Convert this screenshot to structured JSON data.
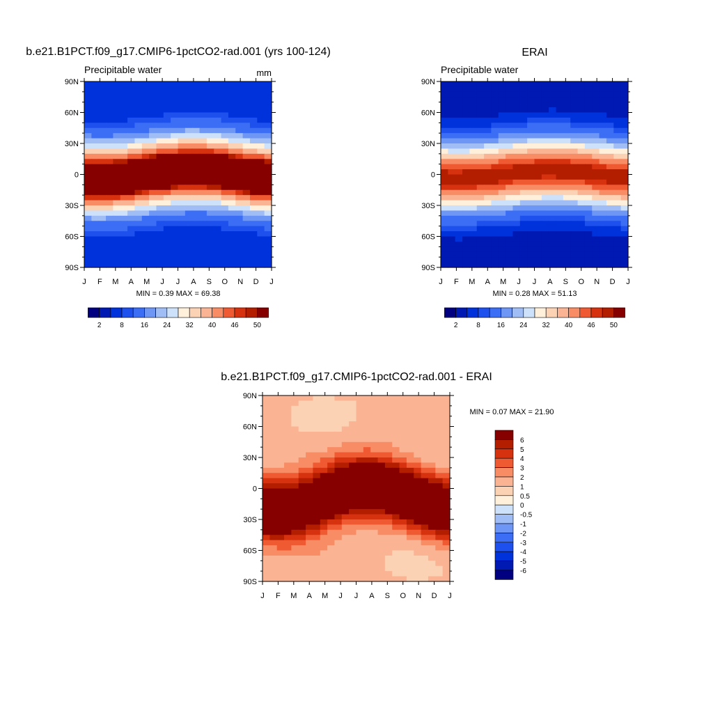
{
  "chart_data": [
    {
      "type": "heatmap",
      "title": "b.e21.B1PCT.f09_g17.CMIP6-1pctCO2-rad.001 (yrs 100-124)",
      "left_string": "Precipitable water",
      "right_string": "mm",
      "x_tick_labels": [
        "J",
        "F",
        "M",
        "A",
        "M",
        "J",
        "J",
        "A",
        "S",
        "O",
        "N",
        "D",
        "J"
      ],
      "y_tick_labels": [
        "90N",
        "60N",
        "30N",
        "0",
        "30S",
        "60S",
        "90S"
      ],
      "ylim": [
        -90,
        90
      ],
      "stats_text": "MIN =   0.39 MAX =  69.38",
      "colorbar": {
        "labels": [
          "2",
          "8",
          "16",
          "24",
          "32",
          "40",
          "46",
          "50"
        ],
        "colors": [
          "#000080",
          "#0019b3",
          "#0032dc",
          "#1e50ee",
          "#3c6ef5",
          "#6e96f5",
          "#a0bef5",
          "#cde1fa",
          "#fff0dc",
          "#fcd2b4",
          "#fab494",
          "#f88c64",
          "#f05a32",
          "#d7320f",
          "#b41e00",
          "#870000"
        ],
        "levels": [
          2,
          4,
          6,
          8,
          12,
          16,
          20,
          24,
          28,
          32,
          36,
          40,
          44,
          46,
          48,
          50
        ]
      }
    },
    {
      "type": "heatmap",
      "title": "ERAI",
      "left_string": "Precipitable water",
      "x_tick_labels": [
        "J",
        "F",
        "M",
        "A",
        "M",
        "J",
        "J",
        "A",
        "S",
        "O",
        "N",
        "D",
        "J"
      ],
      "y_tick_labels": [
        "90N",
        "60N",
        "30N",
        "0",
        "30S",
        "60S",
        "90S"
      ],
      "ylim": [
        -90,
        90
      ],
      "stats_text": "MIN =   0.28 MAX =  51.13",
      "colorbar": {
        "labels": [
          "2",
          "8",
          "16",
          "24",
          "32",
          "40",
          "46",
          "50"
        ],
        "colors": [
          "#000080",
          "#0019b3",
          "#0032dc",
          "#1e50ee",
          "#3c6ef5",
          "#6e96f5",
          "#a0bef5",
          "#cde1fa",
          "#fff0dc",
          "#fcd2b4",
          "#fab494",
          "#f88c64",
          "#f05a32",
          "#d7320f",
          "#b41e00",
          "#870000"
        ],
        "levels": [
          2,
          4,
          6,
          8,
          12,
          16,
          20,
          24,
          28,
          32,
          36,
          40,
          44,
          46,
          48,
          50
        ]
      }
    },
    {
      "type": "heatmap",
      "title": "b.e21.B1PCT.f09_g17.CMIP6-1pctCO2-rad.001 - ERAI",
      "x_tick_labels": [
        "J",
        "F",
        "M",
        "A",
        "M",
        "J",
        "J",
        "A",
        "S",
        "O",
        "N",
        "D",
        "J"
      ],
      "y_tick_labels": [
        "90N",
        "60N",
        "30N",
        "0",
        "30S",
        "60S",
        "90S"
      ],
      "ylim": [
        -90,
        90
      ],
      "stats_text": "MIN =   0.07 MAX =  21.90",
      "colorbar": {
        "labels": [
          "6",
          "5",
          "4",
          "3",
          "2",
          "1",
          "0.5",
          "0",
          "-0.5",
          "-1",
          "-2",
          "-3",
          "-4",
          "-5",
          "-6"
        ],
        "colors": [
          "#870000",
          "#b41e00",
          "#d7320f",
          "#f05a32",
          "#f88c64",
          "#fab494",
          "#fcd2b4",
          "#fff0dc",
          "#cde1fa",
          "#a0bef5",
          "#6e96f5",
          "#3c6ef5",
          "#1e50ee",
          "#0032dc",
          "#0019b3",
          "#000080"
        ],
        "levels": [
          6,
          5,
          4,
          3,
          2,
          1,
          0.5,
          0,
          -0.5,
          -1,
          -2,
          -3,
          -4,
          -5,
          -6
        ]
      }
    }
  ]
}
